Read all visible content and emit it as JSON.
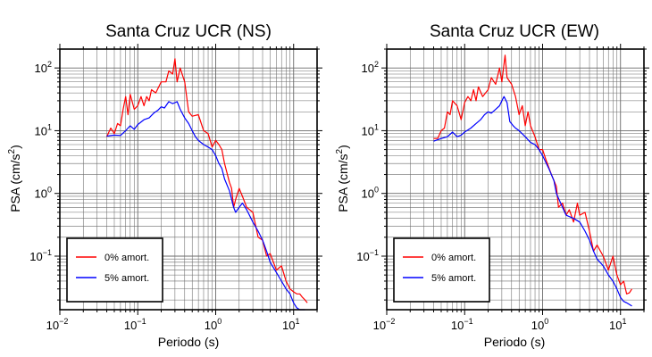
{
  "chart_data": [
    {
      "type": "line",
      "title": "Santa Cruz UCR (NS)",
      "xlabel": "Periodo (s)",
      "ylabel": "PSA (cm/s²)",
      "xscale": "log",
      "yscale": "log",
      "xlim": [
        0.01,
        20
      ],
      "ylim": [
        0.014,
        200
      ],
      "xticks": [
        {
          "v": 0.01,
          "base": "10",
          "exp": "−2"
        },
        {
          "v": 0.1,
          "base": "10",
          "exp": "−1"
        },
        {
          "v": 1,
          "base": "10",
          "exp": "0"
        },
        {
          "v": 10,
          "base": "10",
          "exp": "1"
        }
      ],
      "yticks": [
        {
          "v": 0.1,
          "base": "10",
          "exp": "−1"
        },
        {
          "v": 1,
          "base": "10",
          "exp": "0"
        },
        {
          "v": 10,
          "base": "10",
          "exp": "1"
        },
        {
          "v": 100,
          "base": "10",
          "exp": "2"
        }
      ],
      "grid": true,
      "legend_position": "bottom-left",
      "series": [
        {
          "name": "0% amort.",
          "color": "#ff0000",
          "points": [
            [
              0.04,
              8
            ],
            [
              0.045,
              11
            ],
            [
              0.05,
              9
            ],
            [
              0.055,
              13
            ],
            [
              0.06,
              12
            ],
            [
              0.065,
              22
            ],
            [
              0.07,
              35
            ],
            [
              0.075,
              18
            ],
            [
              0.08,
              38
            ],
            [
              0.09,
              22
            ],
            [
              0.1,
              25
            ],
            [
              0.11,
              35
            ],
            [
              0.12,
              25
            ],
            [
              0.13,
              35
            ],
            [
              0.14,
              30
            ],
            [
              0.15,
              45
            ],
            [
              0.17,
              40
            ],
            [
              0.2,
              60
            ],
            [
              0.23,
              60
            ],
            [
              0.25,
              90
            ],
            [
              0.28,
              80
            ],
            [
              0.3,
              140
            ],
            [
              0.32,
              60
            ],
            [
              0.35,
              100
            ],
            [
              0.4,
              60
            ],
            [
              0.45,
              20
            ],
            [
              0.5,
              17
            ],
            [
              0.6,
              18
            ],
            [
              0.7,
              10
            ],
            [
              0.8,
              9
            ],
            [
              0.9,
              5.5
            ],
            [
              1.0,
              7
            ],
            [
              1.1,
              6
            ],
            [
              1.2,
              5
            ],
            [
              1.3,
              3
            ],
            [
              1.5,
              1.5
            ],
            [
              1.6,
              1.2
            ],
            [
              1.7,
              0.6
            ],
            [
              1.8,
              0.8
            ],
            [
              2.0,
              1.2
            ],
            [
              2.2,
              0.9
            ],
            [
              2.5,
              0.6
            ],
            [
              3.0,
              0.5
            ],
            [
              3.5,
              0.2
            ],
            [
              4.0,
              0.18
            ],
            [
              4.5,
              0.1
            ],
            [
              5.0,
              0.11
            ],
            [
              6.0,
              0.06
            ],
            [
              7.0,
              0.07
            ],
            [
              8.0,
              0.04
            ],
            [
              9.0,
              0.03
            ],
            [
              10.0,
              0.027
            ],
            [
              11.0,
              0.025
            ],
            [
              12.0,
              0.025
            ],
            [
              13.0,
              0.022
            ],
            [
              14.0,
              0.02
            ],
            [
              15.0,
              0.018
            ]
          ]
        },
        {
          "name": "5% amort.",
          "color": "#0000ff",
          "points": [
            [
              0.04,
              8.2
            ],
            [
              0.05,
              8.5
            ],
            [
              0.06,
              8.4
            ],
            [
              0.07,
              10
            ],
            [
              0.08,
              12
            ],
            [
              0.09,
              10.5
            ],
            [
              0.1,
              12.5
            ],
            [
              0.12,
              15
            ],
            [
              0.14,
              16
            ],
            [
              0.16,
              19
            ],
            [
              0.18,
              21
            ],
            [
              0.2,
              24
            ],
            [
              0.22,
              23
            ],
            [
              0.25,
              29
            ],
            [
              0.28,
              27
            ],
            [
              0.3,
              28
            ],
            [
              0.32,
              29
            ],
            [
              0.35,
              22
            ],
            [
              0.4,
              16
            ],
            [
              0.45,
              13
            ],
            [
              0.5,
              10
            ],
            [
              0.55,
              8
            ],
            [
              0.6,
              7
            ],
            [
              0.7,
              6
            ],
            [
              0.8,
              5.5
            ],
            [
              0.9,
              5
            ],
            [
              1.0,
              4
            ],
            [
              1.1,
              3
            ],
            [
              1.2,
              2.5
            ],
            [
              1.3,
              1.7
            ],
            [
              1.5,
              1.1
            ],
            [
              1.7,
              0.6
            ],
            [
              1.8,
              0.5
            ],
            [
              2.0,
              0.6
            ],
            [
              2.2,
              0.7
            ],
            [
              2.5,
              0.55
            ],
            [
              3.0,
              0.35
            ],
            [
              3.5,
              0.25
            ],
            [
              4.0,
              0.18
            ],
            [
              4.5,
              0.12
            ],
            [
              5.0,
              0.08
            ],
            [
              6.0,
              0.055
            ],
            [
              7.0,
              0.04
            ],
            [
              8.0,
              0.03
            ],
            [
              9.0,
              0.025
            ],
            [
              10.0,
              0.018
            ],
            [
              11.0,
              0.015
            ],
            [
              12.0,
              0.014
            ],
            [
              13.0,
              0.014
            ],
            [
              14.0,
              0.014
            ]
          ]
        }
      ]
    },
    {
      "type": "line",
      "title": "Santa Cruz UCR (EW)",
      "xlabel": "Periodo (s)",
      "ylabel": "PSA (cm/s²)",
      "xscale": "log",
      "yscale": "log",
      "xlim": [
        0.01,
        20
      ],
      "ylim": [
        0.014,
        200
      ],
      "xticks": [
        {
          "v": 0.01,
          "base": "10",
          "exp": "−2"
        },
        {
          "v": 0.1,
          "base": "10",
          "exp": "−1"
        },
        {
          "v": 1,
          "base": "10",
          "exp": "0"
        },
        {
          "v": 10,
          "base": "10",
          "exp": "1"
        }
      ],
      "yticks": [
        {
          "v": 0.1,
          "base": "10",
          "exp": "−1"
        },
        {
          "v": 1,
          "base": "10",
          "exp": "0"
        },
        {
          "v": 10,
          "base": "10",
          "exp": "1"
        },
        {
          "v": 100,
          "base": "10",
          "exp": "2"
        }
      ],
      "grid": true,
      "legend_position": "bottom-left",
      "series": [
        {
          "name": "0% amort.",
          "color": "#ff0000",
          "points": [
            [
              0.04,
              7.5
            ],
            [
              0.045,
              7.5
            ],
            [
              0.05,
              10
            ],
            [
              0.055,
              11
            ],
            [
              0.06,
              20
            ],
            [
              0.065,
              18
            ],
            [
              0.07,
              30
            ],
            [
              0.08,
              25
            ],
            [
              0.09,
              15
            ],
            [
              0.1,
              28
            ],
            [
              0.11,
              35
            ],
            [
              0.12,
              30
            ],
            [
              0.13,
              45
            ],
            [
              0.14,
              30
            ],
            [
              0.15,
              50
            ],
            [
              0.17,
              35
            ],
            [
              0.2,
              45
            ],
            [
              0.22,
              70
            ],
            [
              0.25,
              55
            ],
            [
              0.28,
              100
            ],
            [
              0.3,
              60
            ],
            [
              0.33,
              160
            ],
            [
              0.35,
              70
            ],
            [
              0.4,
              55
            ],
            [
              0.45,
              35
            ],
            [
              0.5,
              18
            ],
            [
              0.55,
              25
            ],
            [
              0.6,
              12
            ],
            [
              0.65,
              20
            ],
            [
              0.7,
              12
            ],
            [
              0.8,
              8
            ],
            [
              0.9,
              5
            ],
            [
              1.0,
              5
            ],
            [
              1.1,
              3.5
            ],
            [
              1.3,
              2
            ],
            [
              1.5,
              1.3
            ],
            [
              1.6,
              0.6
            ],
            [
              1.8,
              0.7
            ],
            [
              2.0,
              0.45
            ],
            [
              2.2,
              0.55
            ],
            [
              2.5,
              0.35
            ],
            [
              2.8,
              0.7
            ],
            [
              3.0,
              0.45
            ],
            [
              3.5,
              0.5
            ],
            [
              4.0,
              0.25
            ],
            [
              4.5,
              0.12
            ],
            [
              5.0,
              0.15
            ],
            [
              6.0,
              0.1
            ],
            [
              7.0,
              0.06
            ],
            [
              8.0,
              0.1
            ],
            [
              9.0,
              0.05
            ],
            [
              10.0,
              0.035
            ],
            [
              11.0,
              0.04
            ],
            [
              12.0,
              0.025
            ],
            [
              13.0,
              0.026
            ],
            [
              14.0,
              0.03
            ]
          ]
        },
        {
          "name": "5% amort.",
          "color": "#0000ff",
          "points": [
            [
              0.04,
              6.8
            ],
            [
              0.05,
              7.5
            ],
            [
              0.06,
              8
            ],
            [
              0.07,
              9.5
            ],
            [
              0.08,
              8
            ],
            [
              0.09,
              8.5
            ],
            [
              0.1,
              9.5
            ],
            [
              0.12,
              11
            ],
            [
              0.14,
              13
            ],
            [
              0.16,
              15
            ],
            [
              0.18,
              18
            ],
            [
              0.2,
              20
            ],
            [
              0.22,
              19
            ],
            [
              0.25,
              22
            ],
            [
              0.28,
              25
            ],
            [
              0.3,
              30
            ],
            [
              0.32,
              35
            ],
            [
              0.35,
              28
            ],
            [
              0.38,
              14
            ],
            [
              0.42,
              12
            ],
            [
              0.45,
              11
            ],
            [
              0.5,
              10
            ],
            [
              0.6,
              8
            ],
            [
              0.7,
              6.5
            ],
            [
              0.8,
              6
            ],
            [
              0.9,
              5
            ],
            [
              1.0,
              4
            ],
            [
              1.2,
              2.5
            ],
            [
              1.4,
              1.6
            ],
            [
              1.5,
              1.0
            ],
            [
              1.8,
              0.6
            ],
            [
              2.0,
              0.45
            ],
            [
              2.5,
              0.4
            ],
            [
              3.0,
              0.35
            ],
            [
              3.5,
              0.25
            ],
            [
              4.0,
              0.18
            ],
            [
              4.5,
              0.12
            ],
            [
              5.0,
              0.09
            ],
            [
              6.0,
              0.07
            ],
            [
              7.0,
              0.05
            ],
            [
              8.0,
              0.04
            ],
            [
              9.0,
              0.03
            ],
            [
              10.0,
              0.022
            ],
            [
              11.0,
              0.019
            ],
            [
              12.0,
              0.018
            ],
            [
              14.0,
              0.016
            ]
          ]
        }
      ]
    }
  ]
}
